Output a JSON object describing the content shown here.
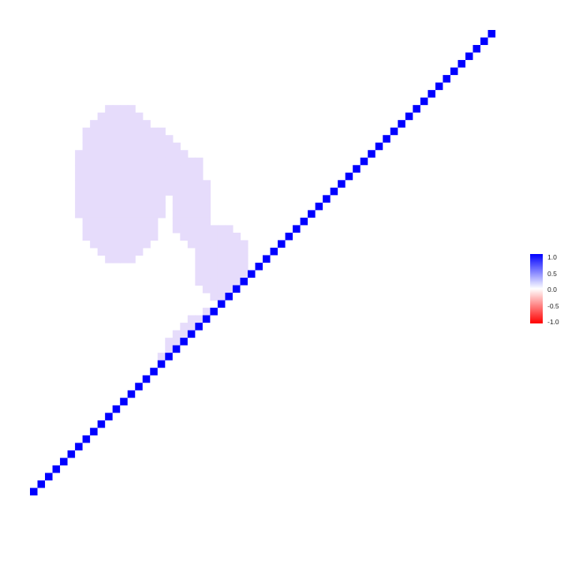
{
  "chart_data": {
    "type": "heatmap",
    "title": "",
    "xlabel": "",
    "ylabel": "",
    "grid": false,
    "n": 62,
    "diagonal_value": 1.0,
    "diagonal_color": "#0000ff",
    "region_value": 0.15,
    "region_color": "#e6dcfb",
    "blobs": [
      {
        "cx": 26.5,
        "cy": 14.5,
        "rx": 10.0,
        "ry": 10.5
      },
      {
        "cx": 32.5,
        "cy": 3.5,
        "rx": 3.0,
        "ry": 4.0
      },
      {
        "cx": 30.0,
        "cy": 24.0,
        "rx": 5.0,
        "ry": 4.5
      },
      {
        "cx": 25.5,
        "cy": 31.0,
        "rx": 3.5,
        "ry": 5.0
      },
      {
        "cx": 21.5,
        "cy": 38.5,
        "rx": 2.5,
        "ry": 5.0
      },
      {
        "cx": 12.0,
        "cy": 41.5,
        "rx": 6.0,
        "ry": 11.0
      },
      {
        "cx": 16.0,
        "cy": 44.5,
        "rx": 4.0,
        "ry": 4.5
      },
      {
        "cx": 19.5,
        "cy": 43.0,
        "rx": 3.5,
        "ry": 3.0
      }
    ],
    "legend": {
      "placement": "right",
      "ticks": [
        "1.0",
        "0.5",
        "0.0",
        "-0.5",
        "-1.0"
      ],
      "colors": {
        "high": "#0000ff",
        "mid": "#ffffff",
        "low": "#ff0000"
      },
      "range": [
        -1.0,
        1.0
      ]
    }
  }
}
